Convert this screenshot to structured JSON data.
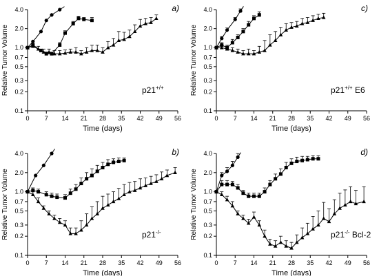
{
  "chart_data": [
    {
      "type": "line",
      "panel_label": "a)",
      "genotype_text": "p21",
      "genotype_sup": "+/+",
      "genotype_suffix": "",
      "xlabel": "Time (days)",
      "ylabel": "Relative Tumor Volume",
      "y_scale": "log",
      "ylim": [
        0.1,
        4.0
      ],
      "xlim": [
        0,
        56
      ],
      "x_ticks": [
        "0",
        "7",
        "14",
        "21",
        "28",
        "35",
        "42",
        "49",
        "56"
      ],
      "y_ticks": [
        "0.1",
        "0.2",
        "0.3",
        "0.5",
        "0.7",
        "1.0",
        "2.0",
        "4.0"
      ],
      "series": [
        {
          "marker": "circle",
          "x": [
            0,
            2,
            5,
            7,
            9,
            12
          ],
          "y": [
            1.0,
            1.25,
            1.8,
            2.7,
            3.3,
            4.0
          ],
          "err": []
        },
        {
          "marker": "square",
          "x": [
            0,
            2,
            5,
            7,
            9,
            12,
            14,
            17,
            19,
            21,
            24
          ],
          "y": [
            1.0,
            1.1,
            0.9,
            0.8,
            0.8,
            1.1,
            1.7,
            2.4,
            2.9,
            2.8,
            2.7
          ],
          "err": [
            0,
            0.05,
            0.05,
            0.05,
            0.05,
            0.1,
            0.15,
            0.2,
            0.25,
            0.2,
            0.3
          ]
        },
        {
          "marker": "triangle",
          "x": [
            0,
            2,
            4,
            6,
            8,
            10,
            12,
            14,
            16,
            18,
            20,
            22,
            24,
            26,
            28,
            30,
            32,
            34,
            36,
            38,
            40,
            42,
            44,
            46,
            48
          ],
          "y": [
            1.0,
            1.05,
            0.95,
            0.85,
            0.85,
            0.8,
            0.8,
            0.82,
            0.85,
            0.85,
            0.8,
            0.85,
            0.9,
            0.9,
            0.85,
            1.0,
            1.1,
            1.3,
            1.35,
            1.5,
            1.8,
            2.2,
            2.4,
            2.5,
            2.9
          ],
          "err": [
            0,
            0.1,
            0.1,
            0.1,
            0.1,
            0.1,
            0.1,
            0.1,
            0.1,
            0.15,
            0.1,
            0.15,
            0.2,
            0.2,
            0.15,
            0.25,
            0.3,
            0.5,
            0.4,
            0.4,
            0.5,
            0.6,
            0.5,
            0.5,
            0.4
          ]
        }
      ]
    },
    {
      "type": "line",
      "panel_label": "c)",
      "genotype_text": "p21",
      "genotype_sup": "+/+",
      "genotype_suffix": " E6",
      "xlabel": "Time (days)",
      "ylabel": "Relative Tumor Volume",
      "y_scale": "log",
      "ylim": [
        0.1,
        4.0
      ],
      "xlim": [
        0,
        56
      ],
      "x_ticks": [
        "0",
        "7",
        "14",
        "21",
        "28",
        "35",
        "42",
        "49",
        "56"
      ],
      "y_ticks": [
        "0.1",
        "0.2",
        "0.3",
        "0.5",
        "0.7",
        "1.0",
        "2.0",
        "4.0"
      ],
      "series": [
        {
          "marker": "circle",
          "x": [
            0,
            2,
            4,
            7,
            9
          ],
          "y": [
            1.0,
            1.4,
            1.9,
            2.8,
            3.8
          ],
          "err": [
            0,
            0.1,
            0.15,
            0.2,
            0.3
          ]
        },
        {
          "marker": "square",
          "x": [
            0,
            2,
            4,
            6,
            8,
            10,
            12,
            14,
            16
          ],
          "y": [
            1.0,
            1.1,
            1.0,
            1.2,
            1.45,
            1.8,
            2.3,
            2.9,
            3.3
          ],
          "err": [
            0,
            0.1,
            0.1,
            0.15,
            0.15,
            0.2,
            0.3,
            0.3,
            0.4
          ]
        },
        {
          "marker": "triangle",
          "x": [
            0,
            2,
            4,
            6,
            8,
            10,
            12,
            14,
            16,
            18,
            20,
            22,
            24,
            26,
            28,
            30,
            32,
            34,
            36,
            38,
            40
          ],
          "y": [
            1.0,
            1.0,
            0.95,
            0.9,
            0.85,
            0.8,
            0.8,
            0.8,
            0.85,
            0.9,
            1.1,
            1.3,
            1.6,
            1.9,
            2.1,
            2.2,
            2.4,
            2.5,
            2.7,
            2.9,
            3.0
          ],
          "err": [
            0,
            0.1,
            0.1,
            0.1,
            0.1,
            0.1,
            0.15,
            0.1,
            0.2,
            0.4,
            0.5,
            0.5,
            0.5,
            0.5,
            0.4,
            0.4,
            0.5,
            0.5,
            0.5,
            0.5,
            0.5
          ]
        }
      ]
    },
    {
      "type": "line",
      "panel_label": "b)",
      "genotype_text": "p21",
      "genotype_sup": "-/-",
      "genotype_suffix": "",
      "xlabel": "Time (days)",
      "ylabel": "Relative Tumor Volume",
      "y_scale": "log",
      "ylim": [
        0.1,
        4.0
      ],
      "xlim": [
        0,
        56
      ],
      "x_ticks": [
        "0",
        "7",
        "14",
        "21",
        "28",
        "35",
        "42",
        "49",
        "56"
      ],
      "y_ticks": [
        "0.1",
        "0.2",
        "0.3",
        "0.5",
        "0.7",
        "1.0",
        "2.0",
        "4.0"
      ],
      "series": [
        {
          "marker": "circle",
          "x": [
            0,
            3,
            6,
            9
          ],
          "y": [
            1.0,
            1.8,
            2.6,
            4.0
          ],
          "err": []
        },
        {
          "marker": "square",
          "x": [
            0,
            2,
            4,
            7,
            9,
            11,
            14,
            16,
            18,
            20,
            22,
            24,
            26,
            28,
            30,
            32,
            34,
            36
          ],
          "y": [
            1.0,
            1.05,
            1.0,
            0.9,
            0.85,
            0.82,
            0.8,
            0.95,
            1.1,
            1.35,
            1.6,
            1.8,
            2.1,
            2.4,
            2.7,
            2.9,
            3.0,
            3.1
          ],
          "err": [
            0,
            0.1,
            0.1,
            0.1,
            0.1,
            0.1,
            0.1,
            0.15,
            0.2,
            0.3,
            0.4,
            0.5,
            0.5,
            0.5,
            0.5,
            0.4,
            0.4,
            0.3
          ]
        },
        {
          "marker": "triangle",
          "x": [
            0,
            2,
            4,
            6,
            8,
            10,
            12,
            14,
            16,
            18,
            20,
            22,
            24,
            26,
            28,
            30,
            32,
            34,
            36,
            38,
            40,
            42,
            44,
            46,
            48,
            50,
            52,
            55
          ],
          "y": [
            1.0,
            0.9,
            0.7,
            0.55,
            0.45,
            0.38,
            0.33,
            0.3,
            0.22,
            0.22,
            0.25,
            0.3,
            0.38,
            0.45,
            0.55,
            0.62,
            0.7,
            0.78,
            0.9,
            1.0,
            1.05,
            1.15,
            1.25,
            1.35,
            1.45,
            1.6,
            1.8,
            2.0
          ],
          "err": [
            0,
            0.1,
            0.1,
            0.05,
            0.05,
            0.05,
            0.05,
            0.05,
            0.05,
            0.05,
            0.1,
            0.15,
            0.2,
            0.25,
            0.3,
            0.3,
            0.3,
            0.35,
            0.4,
            0.4,
            0.4,
            0.45,
            0.4,
            0.4,
            0.4,
            0.45,
            0.4,
            0.4
          ]
        }
      ]
    },
    {
      "type": "line",
      "panel_label": "d)",
      "genotype_text": "p21",
      "genotype_sup": "-/-",
      "genotype_suffix": " Bcl-2",
      "xlabel": "Time (days)",
      "ylabel": "Relative Tumor Volume",
      "y_scale": "log",
      "ylim": [
        0.1,
        4.0
      ],
      "xlim": [
        0,
        56
      ],
      "x_ticks": [
        "0",
        "7",
        "14",
        "21",
        "28",
        "35",
        "42",
        "49",
        "56"
      ],
      "y_ticks": [
        "0.1",
        "0.2",
        "0.3",
        "0.5",
        "0.7",
        "1.0",
        "2.0",
        "4.0"
      ],
      "series": [
        {
          "marker": "circle",
          "x": [
            0,
            2,
            4,
            6,
            8
          ],
          "y": [
            1.0,
            1.8,
            2.1,
            2.6,
            3.5
          ],
          "err": [
            0,
            0.2,
            0.3,
            0.4,
            0.5
          ]
        },
        {
          "marker": "square",
          "x": [
            0,
            2,
            4,
            6,
            8,
            10,
            12,
            14,
            16,
            18,
            20,
            22,
            24,
            26,
            28,
            30,
            32,
            34,
            36,
            38
          ],
          "y": [
            1.0,
            1.3,
            1.3,
            1.3,
            1.15,
            0.95,
            0.85,
            0.85,
            0.85,
            1.0,
            1.3,
            1.6,
            1.9,
            2.4,
            2.8,
            3.0,
            3.1,
            3.2,
            3.3,
            3.3
          ],
          "err": [
            0,
            0.2,
            0.2,
            0.15,
            0.15,
            0.1,
            0.1,
            0.1,
            0.1,
            0.15,
            0.2,
            0.3,
            0.4,
            0.5,
            0.5,
            0.5,
            0.5,
            0.4,
            0.4,
            0.4
          ]
        },
        {
          "marker": "triangle",
          "x": [
            0,
            2,
            4,
            6,
            8,
            10,
            12,
            14,
            16,
            18,
            20,
            22,
            24,
            26,
            28,
            30,
            32,
            34,
            36,
            38,
            40,
            42,
            44,
            46,
            48,
            50,
            52,
            55
          ],
          "y": [
            1.0,
            0.9,
            0.75,
            0.6,
            0.45,
            0.38,
            0.32,
            0.4,
            0.3,
            0.2,
            0.15,
            0.14,
            0.16,
            0.14,
            0.13,
            0.16,
            0.19,
            0.22,
            0.26,
            0.3,
            0.38,
            0.34,
            0.45,
            0.55,
            0.62,
            0.7,
            0.65,
            0.7
          ],
          "err": [
            0,
            0.1,
            0.1,
            0.1,
            0.05,
            0.05,
            0.05,
            0.08,
            0.05,
            0.05,
            0.03,
            0.03,
            0.04,
            0.03,
            0.03,
            0.05,
            0.08,
            0.1,
            0.15,
            0.2,
            0.3,
            0.2,
            0.3,
            0.4,
            0.45,
            0.5,
            0.4,
            0.5
          ]
        }
      ]
    }
  ]
}
